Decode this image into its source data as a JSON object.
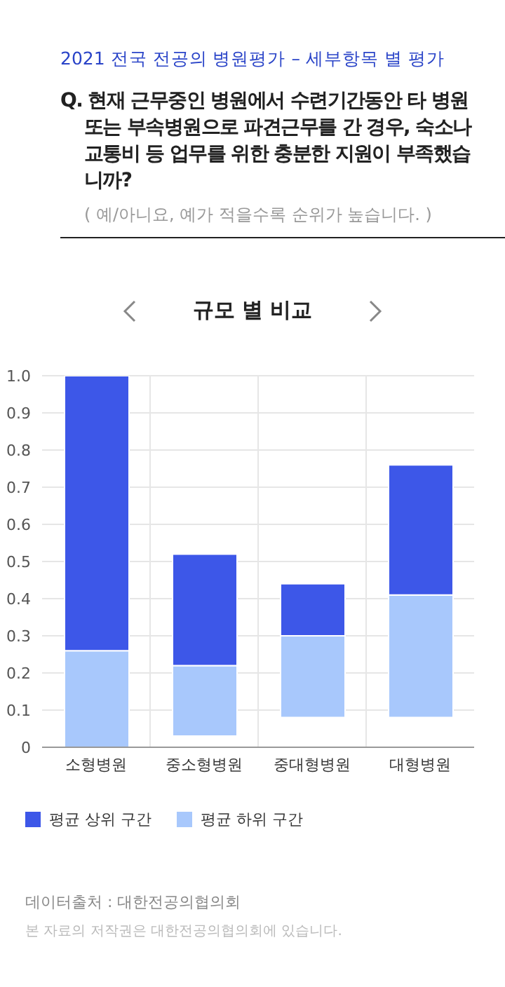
{
  "chart_data": {
    "type": "bar",
    "title": "Q. 현재 근무중인 병원에서 수련기간동안 타 병원 또는 부속병원으로 파견근무를 간 경우, 숙소나 교통비 등 업무를 위한 충분한 지원이 부족했습니까?",
    "subtitle": "( 예/아니요, 예가 적을수록 순위가 높습니다. )",
    "annotations": [
      "2021 전국 전공의 병원평가 – 세부항목 별 평가",
      "규모 별 비교",
      "데이터출처 : 대한전공의협의회",
      "본 자료의 저작권은 대한전공의협의회에 있습니다."
    ],
    "categories": [
      "소형병원",
      "중소형병원",
      "중대형병원",
      "대형병원"
    ],
    "series": [
      {
        "name": "평균 하위 구간",
        "color": "#a8c8fc",
        "base": [
          0,
          0.03,
          0.08,
          0.08
        ],
        "values": [
          0.26,
          0.19,
          0.22,
          0.33
        ]
      },
      {
        "name": "평균 상위 구간",
        "color": "#3d57e8",
        "base": [
          0.26,
          0.22,
          0.3,
          0.41
        ],
        "values": [
          0.74,
          0.3,
          0.14,
          0.35
        ]
      }
    ],
    "ylim": [
      0,
      1
    ],
    "yticks": [
      0,
      {
        "value": 0.1,
        "label": "0.1"
      },
      {
        "value": 0.2,
        "label": "0.2"
      },
      {
        "value": 0.3,
        "label": "0.3"
      },
      {
        "value": 0.4,
        "label": "0.4"
      },
      {
        "value": 0.5,
        "label": "0.5"
      },
      {
        "value": 0.6,
        "label": "0.6"
      },
      {
        "value": 0.7,
        "label": "0.7"
      },
      {
        "value": 0.8,
        "label": "0.8"
      },
      {
        "value": 0.9,
        "label": "0.9"
      },
      {
        "value": 1,
        "label": "1.0"
      }
    ],
    "grid": true,
    "legend": "bottom left"
  }
}
